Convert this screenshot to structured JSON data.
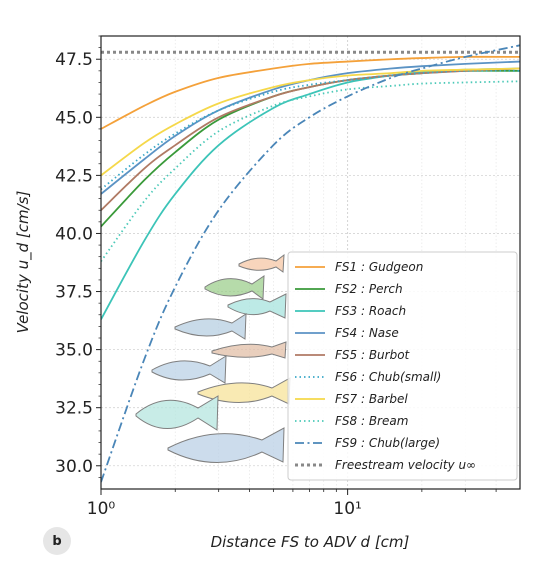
{
  "panel_label": "b",
  "chart_data": {
    "type": "line",
    "xlabel": "Distance FS to ADV d [cm]",
    "ylabel": "Velocity u_d [cm/s]",
    "xscale": "log",
    "xlim": [
      1,
      50
    ],
    "ylim": [
      29,
      48.5
    ],
    "xticks": [
      1,
      10
    ],
    "xtick_labels": [
      "10⁰",
      "10¹"
    ],
    "yticks": [
      30.0,
      32.5,
      35.0,
      37.5,
      40.0,
      42.5,
      45.0,
      47.5
    ],
    "ytick_labels": [
      "30.0",
      "32.5",
      "35.0",
      "37.5",
      "40.0",
      "42.5",
      "45.0",
      "47.5"
    ],
    "grid": true,
    "legend_position": "lower-right",
    "x": [
      1,
      1.5,
      2,
      3,
      5,
      7,
      10,
      15,
      20,
      30,
      50
    ],
    "series": [
      {
        "name": "FS1 : Gudgeon",
        "style": "solid",
        "color": "#f4a13a",
        "values": [
          44.5,
          45.5,
          46.1,
          46.7,
          47.1,
          47.3,
          47.4,
          47.5,
          47.55,
          47.6,
          47.6
        ]
      },
      {
        "name": "FS2 : Perch",
        "style": "solid",
        "color": "#3a9a3a",
        "values": [
          40.3,
          42.3,
          43.5,
          44.9,
          45.9,
          46.3,
          46.6,
          46.8,
          46.9,
          47.0,
          47.0
        ]
      },
      {
        "name": "FS3 : Roach",
        "style": "solid",
        "color": "#3cc4b8",
        "values": [
          36.3,
          39.7,
          41.7,
          43.8,
          45.4,
          46.0,
          46.5,
          46.8,
          46.95,
          47.05,
          47.1
        ]
      },
      {
        "name": "FS4 : Nase",
        "style": "solid",
        "color": "#5b93c4",
        "values": [
          41.7,
          43.2,
          44.2,
          45.3,
          46.2,
          46.6,
          46.9,
          47.1,
          47.2,
          47.3,
          47.4
        ]
      },
      {
        "name": "FS5 : Burbot",
        "style": "solid",
        "color": "#b07a64",
        "values": [
          41.0,
          42.8,
          43.8,
          45.0,
          45.9,
          46.3,
          46.6,
          46.8,
          46.9,
          47.0,
          47.1
        ]
      },
      {
        "name": "FS6 : Chub(small)",
        "style": "dotted",
        "color": "#3aa8c8",
        "values": [
          41.9,
          43.4,
          44.3,
          45.3,
          46.1,
          46.4,
          46.6,
          46.8,
          46.9,
          47.0,
          47.0
        ]
      },
      {
        "name": "FS7 : Barbel",
        "style": "solid",
        "color": "#f5d84a",
        "values": [
          42.5,
          43.9,
          44.7,
          45.6,
          46.3,
          46.6,
          46.8,
          46.9,
          47.0,
          47.05,
          47.1
        ]
      },
      {
        "name": "FS8 : Bream",
        "style": "dotted",
        "color": "#4cc9b8",
        "values": [
          38.8,
          41.4,
          42.8,
          44.4,
          45.5,
          45.9,
          46.2,
          46.35,
          46.45,
          46.5,
          46.55
        ]
      },
      {
        "name": "FS9 : Chub(large)",
        "style": "dashdot",
        "color": "#4a86b8",
        "values": [
          29.3,
          34.6,
          37.7,
          41.0,
          43.8,
          45.0,
          45.9,
          46.7,
          47.1,
          47.6,
          48.1
        ]
      }
    ],
    "reference": {
      "name": "Freestream velocity u∞",
      "style": "dotted",
      "color": "#888888",
      "value": 47.8
    }
  }
}
